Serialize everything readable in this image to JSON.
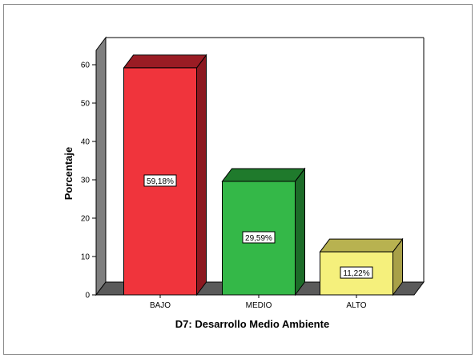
{
  "chart_data": {
    "type": "bar",
    "xlabel": "D7: Desarrollo Medio Ambiente",
    "ylabel": "Porcentaje",
    "categories": [
      "BAJO",
      "MEDIO",
      "ALTO"
    ],
    "values": [
      59.18,
      29.59,
      11.22
    ],
    "data_labels": [
      "59,18%",
      "29,59%",
      "11,22%"
    ],
    "ylim": [
      0,
      60
    ],
    "yticks": [
      0,
      10,
      20,
      30,
      40,
      50,
      60
    ],
    "grid": false,
    "legend": "none",
    "style": "3d",
    "colors": {
      "bars": [
        "#f0343c",
        "#34b848",
        "#f5f07c"
      ],
      "bar_tops": [
        "#9a1c24",
        "#1f7a2c",
        "#b8b250"
      ],
      "bar_sides": [
        "#8c1820",
        "#1c6c28",
        "#a8a048"
      ],
      "wall": "#7f7f7f",
      "floor": "#5a5a5a"
    }
  }
}
